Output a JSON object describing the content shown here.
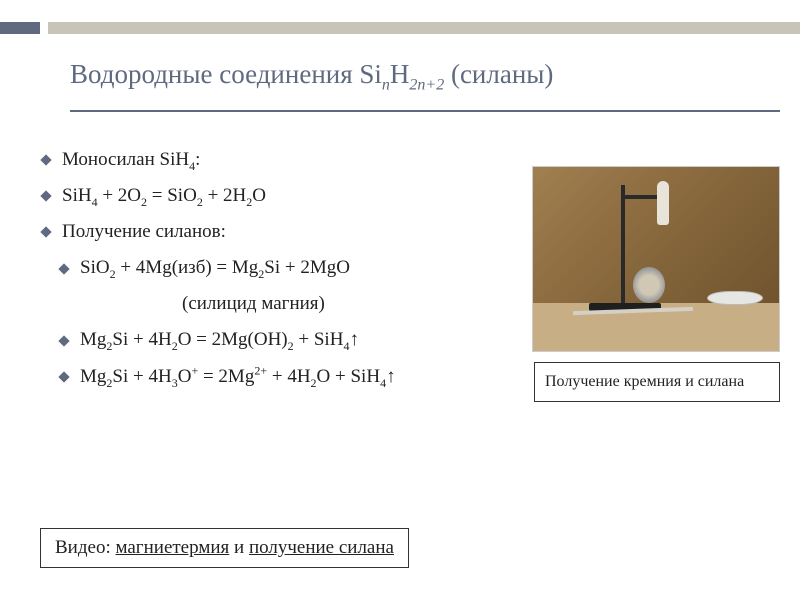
{
  "title_html": "Водородные соединения Si<sub><i>n</i></sub>H<sub>2<i>n</i>+2</sub> (силаны)",
  "bullets": [
    {
      "html": "Моносилан SiH<sub>4</sub>:",
      "cls": ""
    },
    {
      "html": "SiH<sub>4</sub> + 2O<sub>2</sub> = SiO<sub>2</sub> + 2H<sub>2</sub>O",
      "cls": ""
    },
    {
      "html": "Получение силанов:",
      "cls": ""
    },
    {
      "html": "SiO<sub>2</sub> + 4Mg(изб) = Mg<sub>2</sub>Si + 2MgO",
      "cls": "indent"
    },
    {
      "html": "(силицид магния)",
      "cls": "paren",
      "no_bullet": true
    },
    {
      "html": "Mg<sub>2</sub>Si + 4H<sub>2</sub>O = 2Mg(OH)<sub>2</sub> + SiH<sub>4</sub>↑",
      "cls": "indent"
    },
    {
      "html": "Mg<sub>2</sub>Si + 4H<sub>3</sub>O<sup>+</sup> = 2Mg<sup>2+</sup> + 4H<sub>2</sub>O + SiH<sub>4</sub>↑",
      "cls": "indent"
    }
  ],
  "photo_caption": "Получение кремния и силана",
  "video_prefix": "Видео: ",
  "video_link1": "магниетермия",
  "video_mid": " и ",
  "video_link2": "получение силана",
  "colors": {
    "accent": "#5f6980",
    "rule": "#c9c4b8",
    "text": "#222222",
    "border": "#333333"
  }
}
